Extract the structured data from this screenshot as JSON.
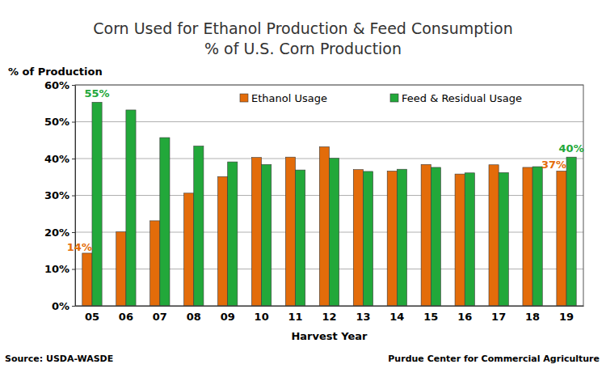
{
  "chart_data": {
    "type": "bar",
    "title": "Corn Used for Ethanol Production & Feed Consumption",
    "subtitle": "% of U.S. Corn Production",
    "y_label": "% of  Production",
    "x_label": "Harvest Year",
    "source": "Source:  USDA-WASDE",
    "credit": "Purdue Center for Commercial Agriculture",
    "categories": [
      "05",
      "06",
      "07",
      "08",
      "09",
      "10",
      "11",
      "12",
      "13",
      "14",
      "15",
      "16",
      "17",
      "18",
      "19"
    ],
    "series": [
      {
        "name": "Ethanol Usage",
        "color": "#e36c0a",
        "values": [
          14.3,
          20.1,
          23.1,
          30.6,
          35.1,
          40.3,
          40.4,
          43.2,
          37.0,
          36.6,
          38.4,
          35.8,
          38.3,
          37.6,
          36.6
        ],
        "value_labels": [
          "14%",
          null,
          null,
          null,
          null,
          null,
          null,
          null,
          null,
          null,
          null,
          null,
          null,
          null,
          "37%"
        ]
      },
      {
        "name": "Feed & Residual Usage",
        "color": "#22a83a",
        "values": [
          55.3,
          53.2,
          45.7,
          43.4,
          39.1,
          38.4,
          36.9,
          40.1,
          36.5,
          37.1,
          37.6,
          36.1,
          36.2,
          37.8,
          40.4
        ],
        "value_labels": [
          "55%",
          null,
          null,
          null,
          null,
          null,
          null,
          null,
          null,
          null,
          null,
          null,
          null,
          null,
          "40%"
        ]
      }
    ],
    "ylim": [
      0,
      60
    ],
    "yticks": [
      {
        "value": 0,
        "label": "0%"
      },
      {
        "value": 10,
        "label": "10%"
      },
      {
        "value": 20,
        "label": "20%"
      },
      {
        "value": 30,
        "label": "30%"
      },
      {
        "value": 40,
        "label": "40%"
      },
      {
        "value": 50,
        "label": "50%"
      },
      {
        "value": 60,
        "label": "60%"
      }
    ],
    "grid": true,
    "legend": "top"
  }
}
